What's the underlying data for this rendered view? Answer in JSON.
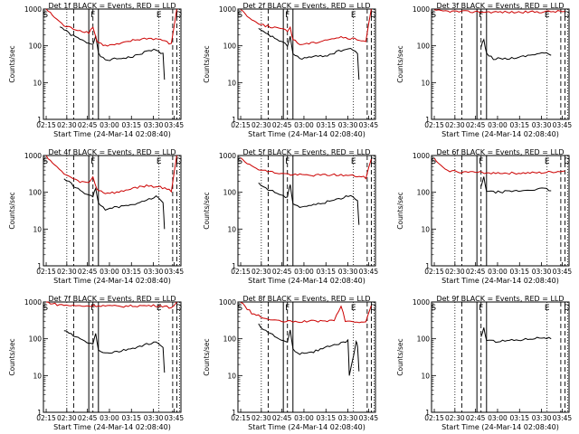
{
  "chart_data": [
    {
      "type": "line",
      "detector": "Det 1f",
      "title": "Det 1f BLACK = Events, RED = LLD",
      "xlabel": "Start Time (24-Mar-14 02:08:40)",
      "ylabel": "Counts/sec",
      "yscale": "log",
      "ylim": [
        1,
        1000
      ],
      "xticks": [
        "02:15",
        "02:30",
        "02:45",
        "03:00",
        "03:15",
        "03:30",
        "03:45"
      ],
      "markers": [
        "S",
        "F",
        "E",
        "D"
      ],
      "series": [
        {
          "name": "BLACK",
          "color": "#000000",
          "points": [
            [
              0.12,
              340
            ],
            [
              0.2,
              200
            ],
            [
              0.3,
              130
            ],
            [
              0.36,
              110
            ],
            [
              0.38,
              200
            ],
            [
              0.4,
              60
            ],
            [
              0.45,
              40
            ],
            [
              0.55,
              45
            ],
            [
              0.65,
              50
            ],
            [
              0.75,
              70
            ],
            [
              0.82,
              80
            ],
            [
              0.87,
              60
            ],
            [
              0.88,
              12
            ]
          ]
        },
        {
          "name": "RED",
          "color": "#cc0000",
          "points": [
            [
              0.02,
              1000
            ],
            [
              0.08,
              600
            ],
            [
              0.15,
              350
            ],
            [
              0.25,
              270
            ],
            [
              0.33,
              230
            ],
            [
              0.36,
              330
            ],
            [
              0.39,
              130
            ],
            [
              0.45,
              100
            ],
            [
              0.55,
              110
            ],
            [
              0.65,
              140
            ],
            [
              0.75,
              160
            ],
            [
              0.85,
              150
            ],
            [
              0.93,
              110
            ],
            [
              0.97,
              1000
            ]
          ]
        }
      ]
    },
    {
      "type": "line",
      "detector": "Det 2f",
      "title": "Det 2f BLACK = Events, RED = LLD",
      "xlabel": "Start Time (24-Mar-14 02:08:40)",
      "ylabel": "Counts/sec",
      "yscale": "log",
      "ylim": [
        1,
        1000
      ],
      "xticks": [
        "02:15",
        "02:30",
        "02:45",
        "03:00",
        "03:15",
        "03:30",
        "03:45"
      ],
      "markers": [
        "S",
        "F",
        "E",
        "D"
      ],
      "series": [
        {
          "name": "BLACK",
          "color": "#000000",
          "points": [
            [
              0.15,
              280
            ],
            [
              0.22,
              200
            ],
            [
              0.3,
              140
            ],
            [
              0.36,
              100
            ],
            [
              0.38,
              180
            ],
            [
              0.4,
              60
            ],
            [
              0.45,
              45
            ],
            [
              0.55,
              50
            ],
            [
              0.65,
              55
            ],
            [
              0.75,
              75
            ],
            [
              0.82,
              85
            ],
            [
              0.87,
              60
            ],
            [
              0.88,
              12
            ]
          ]
        },
        {
          "name": "RED",
          "color": "#cc0000",
          "points": [
            [
              0.02,
              1000
            ],
            [
              0.1,
              500
            ],
            [
              0.2,
              350
            ],
            [
              0.3,
              300
            ],
            [
              0.36,
              250
            ],
            [
              0.38,
              320
            ],
            [
              0.4,
              150
            ],
            [
              0.45,
              110
            ],
            [
              0.55,
              120
            ],
            [
              0.65,
              150
            ],
            [
              0.75,
              170
            ],
            [
              0.85,
              150
            ],
            [
              0.93,
              130
            ],
            [
              0.97,
              1000
            ]
          ]
        }
      ]
    },
    {
      "type": "line",
      "detector": "Det 3f",
      "title": "Det 3f BLACK = Events, RED = LLD",
      "xlabel": "Start Time (24-Mar-14 02:08:40)",
      "ylabel": "Counts/sec",
      "yscale": "log",
      "ylim": [
        1,
        1000
      ],
      "xticks": [
        "02:15",
        "02:30",
        "02:45",
        "03:00",
        "03:15",
        "03:30",
        "03:45"
      ],
      "markers": [
        "S",
        "F",
        "E",
        "D"
      ],
      "series": [
        {
          "name": "BLACK",
          "color": "#000000",
          "points": [
            [
              0.36,
              90
            ],
            [
              0.38,
              150
            ],
            [
              0.4,
              60
            ],
            [
              0.45,
              45
            ],
            [
              0.55,
              45
            ],
            [
              0.65,
              50
            ],
            [
              0.75,
              60
            ],
            [
              0.82,
              65
            ],
            [
              0.87,
              55
            ]
          ]
        },
        {
          "name": "RED",
          "color": "#cc0000",
          "points": [
            [
              0.02,
              900
            ],
            [
              0.2,
              850
            ],
            [
              0.4,
              830
            ],
            [
              0.6,
              820
            ],
            [
              0.8,
              840
            ],
            [
              0.97,
              870
            ]
          ]
        }
      ]
    },
    {
      "type": "line",
      "detector": "Det 4f",
      "title": "Det 4f BLACK = Events, RED = LLD",
      "xlabel": "Start Time (24-Mar-14 02:08:40)",
      "ylabel": "Counts/sec",
      "yscale": "log",
      "ylim": [
        1,
        1000
      ],
      "xticks": [
        "02:15",
        "02:30",
        "02:45",
        "03:00",
        "03:15",
        "03:30",
        "03:45"
      ],
      "markers": [
        "S",
        "F",
        "E",
        "D"
      ],
      "series": [
        {
          "name": "BLACK",
          "color": "#000000",
          "points": [
            [
              0.15,
              240
            ],
            [
              0.22,
              150
            ],
            [
              0.3,
              90
            ],
            [
              0.36,
              80
            ],
            [
              0.38,
              120
            ],
            [
              0.4,
              50
            ],
            [
              0.45,
              35
            ],
            [
              0.55,
              40
            ],
            [
              0.65,
              45
            ],
            [
              0.75,
              65
            ],
            [
              0.82,
              75
            ],
            [
              0.87,
              55
            ],
            [
              0.88,
              10
            ]
          ]
        },
        {
          "name": "RED",
          "color": "#cc0000",
          "points": [
            [
              0.02,
              1000
            ],
            [
              0.08,
              550
            ],
            [
              0.15,
              320
            ],
            [
              0.25,
              200
            ],
            [
              0.33,
              180
            ],
            [
              0.36,
              260
            ],
            [
              0.39,
              120
            ],
            [
              0.45,
              95
            ],
            [
              0.55,
              100
            ],
            [
              0.65,
              130
            ],
            [
              0.75,
              150
            ],
            [
              0.85,
              140
            ],
            [
              0.93,
              110
            ],
            [
              0.97,
              1000
            ]
          ]
        }
      ]
    },
    {
      "type": "line",
      "detector": "Det 5f",
      "title": "Det 5f BLACK = Events, RED = LLD",
      "xlabel": "Start Time (24-Mar-14 02:08:40)",
      "ylabel": "Counts/sec",
      "yscale": "log",
      "ylim": [
        1,
        1000
      ],
      "xticks": [
        "02:15",
        "02:30",
        "02:45",
        "03:00",
        "03:15",
        "03:30",
        "03:45"
      ],
      "markers": [
        "S",
        "F",
        "E",
        "D"
      ],
      "series": [
        {
          "name": "BLACK",
          "color": "#000000",
          "points": [
            [
              0.15,
              170
            ],
            [
              0.22,
              120
            ],
            [
              0.3,
              90
            ],
            [
              0.36,
              70
            ],
            [
              0.38,
              170
            ],
            [
              0.4,
              50
            ],
            [
              0.45,
              40
            ],
            [
              0.55,
              45
            ],
            [
              0.65,
              55
            ],
            [
              0.75,
              70
            ],
            [
              0.82,
              85
            ],
            [
              0.87,
              60
            ],
            [
              0.88,
              13
            ]
          ]
        },
        {
          "name": "RED",
          "color": "#cc0000",
          "points": [
            [
              0.02,
              900
            ],
            [
              0.1,
              500
            ],
            [
              0.2,
              380
            ],
            [
              0.3,
              330
            ],
            [
              0.4,
              300
            ],
            [
              0.55,
              290
            ],
            [
              0.7,
              300
            ],
            [
              0.85,
              280
            ],
            [
              0.93,
              250
            ],
            [
              0.97,
              800
            ]
          ]
        }
      ]
    },
    {
      "type": "line",
      "detector": "Det 6f",
      "title": "Det 6f BLACK = Events, RED = LLD",
      "xlabel": "Start Time (24-Mar-14 02:08:40)",
      "ylabel": "Counts/sec",
      "yscale": "log",
      "ylim": [
        1,
        1000
      ],
      "xticks": [
        "02:15",
        "02:30",
        "02:45",
        "03:00",
        "03:15",
        "03:30",
        "03:45"
      ],
      "markers": [
        "S",
        "F",
        "E",
        "D"
      ],
      "series": [
        {
          "name": "BLACK",
          "color": "#000000",
          "points": [
            [
              0.36,
              140
            ],
            [
              0.38,
              250
            ],
            [
              0.4,
              110
            ],
            [
              0.45,
              100
            ],
            [
              0.55,
              105
            ],
            [
              0.65,
              110
            ],
            [
              0.75,
              120
            ],
            [
              0.82,
              125
            ],
            [
              0.87,
              110
            ]
          ]
        },
        {
          "name": "RED",
          "color": "#cc0000",
          "points": [
            [
              0.02,
              800
            ],
            [
              0.1,
              400
            ],
            [
              0.2,
              360
            ],
            [
              0.4,
              340
            ],
            [
              0.6,
              330
            ],
            [
              0.8,
              340
            ],
            [
              0.97,
              380
            ]
          ]
        }
      ]
    },
    {
      "type": "line",
      "detector": "Det 7f",
      "title": "Det 7f BLACK = Events, RED = LLD",
      "xlabel": "Start Time (24-Mar-14 02:08:40)",
      "ylabel": "Counts/sec",
      "yscale": "log",
      "ylim": [
        1,
        1000
      ],
      "xticks": [
        "02:15",
        "02:30",
        "02:45",
        "03:00",
        "03:15",
        "03:30",
        "03:45"
      ],
      "markers": [
        "S",
        "F",
        "E",
        "D"
      ],
      "series": [
        {
          "name": "BLACK",
          "color": "#000000",
          "points": [
            [
              0.15,
              170
            ],
            [
              0.22,
              120
            ],
            [
              0.3,
              85
            ],
            [
              0.36,
              70
            ],
            [
              0.38,
              140
            ],
            [
              0.4,
              50
            ],
            [
              0.45,
              40
            ],
            [
              0.55,
              45
            ],
            [
              0.65,
              55
            ],
            [
              0.75,
              70
            ],
            [
              0.82,
              80
            ],
            [
              0.87,
              55
            ],
            [
              0.88,
              12
            ]
          ]
        },
        {
          "name": "RED",
          "color": "#cc0000",
          "points": [
            [
              0.02,
              1000
            ],
            [
              0.1,
              850
            ],
            [
              0.2,
              800
            ],
            [
              0.3,
              780
            ],
            [
              0.4,
              800
            ],
            [
              0.55,
              760
            ],
            [
              0.7,
              790
            ],
            [
              0.85,
              800
            ],
            [
              0.93,
              700
            ],
            [
              0.97,
              1000
            ]
          ]
        }
      ]
    },
    {
      "type": "line",
      "detector": "Det 8f",
      "title": "Det 8f BLACK = Events, RED = LLD",
      "xlabel": "Start Time (24-Mar-14 02:08:40)",
      "ylabel": "Counts/sec",
      "yscale": "log",
      "ylim": [
        1,
        1000
      ],
      "xticks": [
        "02:15",
        "02:30",
        "02:45",
        "03:00",
        "03:15",
        "03:30",
        "03:45"
      ],
      "markers": [
        "S",
        "F",
        "E",
        "D"
      ],
      "series": [
        {
          "name": "BLACK",
          "color": "#000000",
          "points": [
            [
              0.15,
              240
            ],
            [
              0.22,
              150
            ],
            [
              0.3,
              100
            ],
            [
              0.36,
              80
            ],
            [
              0.38,
              170
            ],
            [
              0.4,
              50
            ],
            [
              0.45,
              40
            ],
            [
              0.55,
              45
            ],
            [
              0.65,
              60
            ],
            [
              0.75,
              75
            ],
            [
              0.8,
              90
            ],
            [
              0.81,
              10
            ],
            [
              0.86,
              80
            ],
            [
              0.87,
              65
            ],
            [
              0.88,
              13
            ]
          ]
        },
        {
          "name": "RED",
          "color": "#cc0000",
          "points": [
            [
              0.02,
              1000
            ],
            [
              0.1,
              500
            ],
            [
              0.2,
              350
            ],
            [
              0.3,
              300
            ],
            [
              0.4,
              290
            ],
            [
              0.55,
              300
            ],
            [
              0.7,
              310
            ],
            [
              0.75,
              800
            ],
            [
              0.78,
              300
            ],
            [
              0.85,
              290
            ],
            [
              0.93,
              280
            ],
            [
              0.97,
              800
            ]
          ]
        }
      ]
    },
    {
      "type": "line",
      "detector": "Det 9f",
      "title": "Det 9f BLACK = Events, RED = LLD",
      "xlabel": "Start Time (24-Mar-14 02:08:40)",
      "ylabel": "Counts/sec",
      "yscale": "log",
      "ylim": [
        1,
        1000
      ],
      "xticks": [
        "02:15",
        "02:30",
        "02:45",
        "03:00",
        "03:15",
        "03:30",
        "03:45"
      ],
      "markers": [
        "S",
        "F",
        "E",
        "D"
      ],
      "series": [
        {
          "name": "BLACK",
          "color": "#000000",
          "points": [
            [
              0.36,
              110
            ],
            [
              0.38,
              200
            ],
            [
              0.4,
              90
            ],
            [
              0.45,
              85
            ],
            [
              0.55,
              90
            ],
            [
              0.65,
              95
            ],
            [
              0.75,
              105
            ],
            [
              0.82,
              110
            ],
            [
              0.87,
              100
            ]
          ]
        },
        {
          "name": "RED",
          "color": "#cc0000",
          "points": []
        }
      ]
    }
  ],
  "ytick_labels": [
    "1",
    "10",
    "100",
    "1000"
  ]
}
